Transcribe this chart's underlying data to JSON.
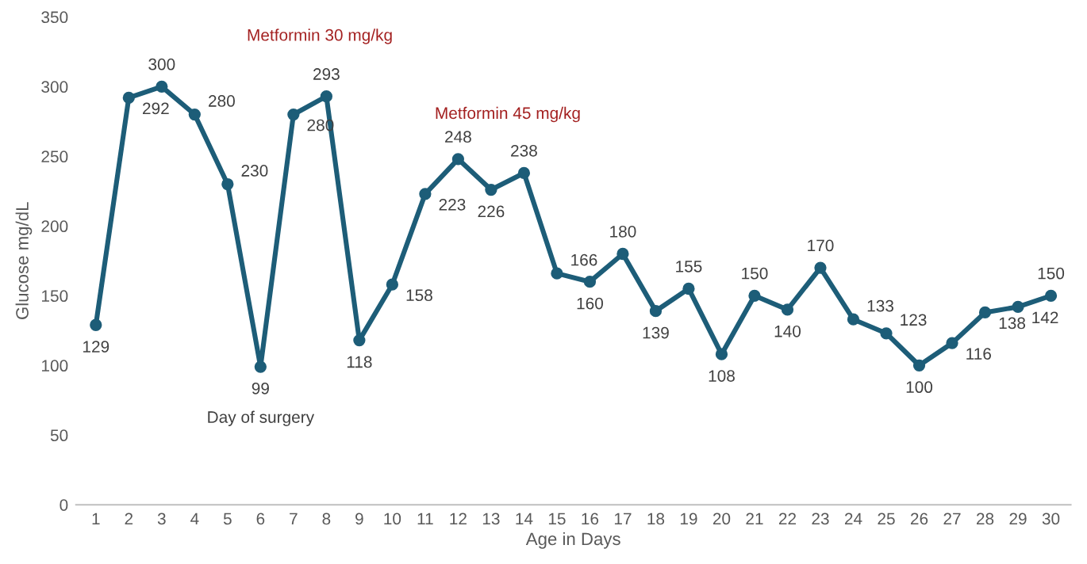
{
  "chart_data": {
    "type": "line",
    "xlabel": "Age in Days",
    "ylabel": "Glucose mg/dL",
    "categories": [
      "1",
      "2",
      "3",
      "4",
      "5",
      "6",
      "7",
      "8",
      "9",
      "10",
      "11",
      "12",
      "13",
      "14",
      "15",
      "16",
      "17",
      "18",
      "19",
      "20",
      "21",
      "22",
      "23",
      "24",
      "25",
      "26",
      "27",
      "28",
      "29",
      "30"
    ],
    "series": [
      {
        "color": "#1d5d78",
        "values": [
          129,
          292,
          300,
          280,
          230,
          99,
          280,
          293,
          118,
          158,
          223,
          248,
          226,
          238,
          166,
          160,
          180,
          139,
          155,
          108,
          150,
          140,
          170,
          133,
          123,
          100,
          116,
          138,
          142,
          150
        ]
      }
    ],
    "ylim": [
      0,
      350
    ],
    "yticks": [
      0,
      50,
      100,
      150,
      200,
      250,
      300,
      350
    ],
    "grid": false,
    "marker": "circle",
    "line_style": "solid",
    "data_labels": true,
    "annotations": [
      {
        "text": "Day of surgery",
        "x": "6",
        "y": 99
      },
      "Metformin 30 mg/kg",
      "Metformin 45 mg/kg"
    ]
  }
}
